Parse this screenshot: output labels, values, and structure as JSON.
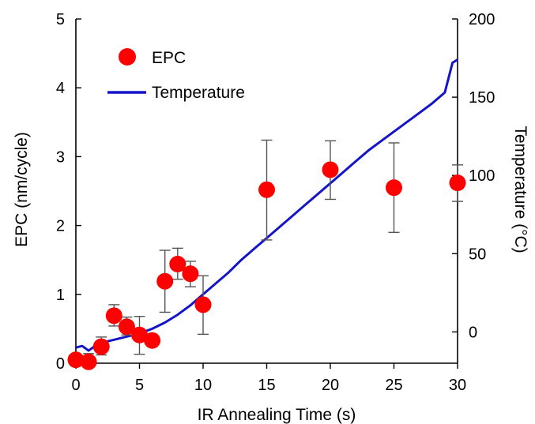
{
  "chart_data": {
    "type": "scatter",
    "xlabel": "IR Annealing Time (s)",
    "ylabel": "EPC (nm/cycle)",
    "y2label": "Temperature (°C)",
    "xlim": [
      0,
      30
    ],
    "xticks": [
      0,
      5,
      10,
      15,
      20,
      25,
      30
    ],
    "ylim": [
      0,
      5
    ],
    "yticks": [
      0,
      1,
      2,
      3,
      4,
      5
    ],
    "y2lim": [
      -20,
      200
    ],
    "y2ticks": [
      0,
      50,
      100,
      150,
      200
    ],
    "grid": false,
    "legend_position": "top-left",
    "series": [
      {
        "name": "EPC",
        "kind": "scatter-with-error-bars",
        "color": "#ff0000",
        "axis": "left",
        "points": [
          {
            "x": 0,
            "y": 0.05,
            "err_low": 0.05,
            "err_high": 0.05
          },
          {
            "x": 1,
            "y": 0.02,
            "err_low": 0.04,
            "err_high": 0.12
          },
          {
            "x": 2,
            "y": 0.24,
            "err_low": 0.12,
            "err_high": 0.14
          },
          {
            "x": 3,
            "y": 0.69,
            "err_low": 0.15,
            "err_high": 0.16
          },
          {
            "x": 4,
            "y": 0.53,
            "err_low": 0.12,
            "err_high": 0.14
          },
          {
            "x": 5,
            "y": 0.41,
            "err_low": 0.28,
            "err_high": 0.27
          },
          {
            "x": 6,
            "y": 0.33,
            "err_low": 0.0,
            "err_high": 0.0
          },
          {
            "x": 7,
            "y": 1.19,
            "err_low": 0.45,
            "err_high": 0.45
          },
          {
            "x": 8,
            "y": 1.44,
            "err_low": 0.22,
            "err_high": 0.23
          },
          {
            "x": 9,
            "y": 1.3,
            "err_low": 0.19,
            "err_high": 0.18
          },
          {
            "x": 10,
            "y": 0.85,
            "err_low": 0.43,
            "err_high": 0.42
          },
          {
            "x": 15,
            "y": 2.52,
            "err_low": 0.73,
            "err_high": 0.72
          },
          {
            "x": 20,
            "y": 2.81,
            "err_low": 0.43,
            "err_high": 0.42
          },
          {
            "x": 25,
            "y": 2.55,
            "err_low": 0.65,
            "err_high": 0.65
          },
          {
            "x": 30,
            "y": 2.62,
            "err_low": 0.27,
            "err_high": 0.26
          }
        ]
      },
      {
        "name": "Temperature",
        "kind": "line",
        "color": "#1414c8",
        "axis": "right",
        "x": [
          0,
          0.5,
          1,
          1.5,
          2,
          3,
          4,
          5,
          6,
          7,
          8,
          9,
          10,
          11,
          12,
          13,
          14,
          15,
          16,
          17,
          18,
          19,
          20,
          21,
          22,
          23,
          24,
          25,
          26,
          27,
          28,
          29,
          29.6,
          30
        ],
        "y": [
          -10,
          -9,
          -12,
          -9,
          -7,
          -5,
          -3,
          -1,
          2,
          6,
          11,
          17,
          24,
          31,
          38,
          46,
          53,
          60,
          67,
          74,
          81,
          88,
          95,
          102,
          109,
          116,
          122,
          128,
          134,
          140,
          146,
          153,
          172,
          174
        ]
      }
    ]
  }
}
